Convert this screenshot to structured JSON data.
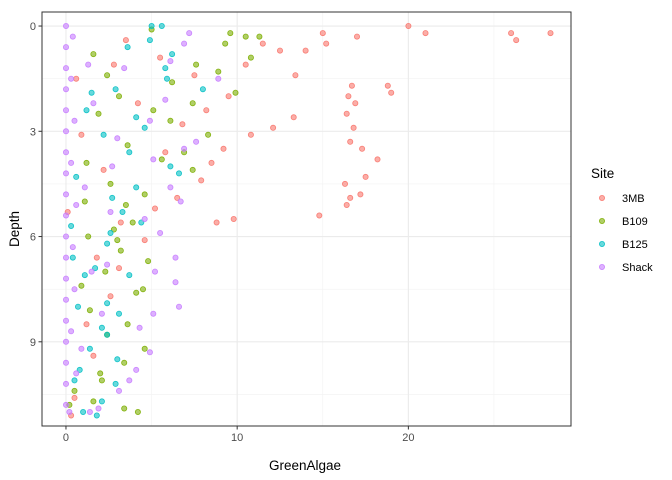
{
  "chart_data": {
    "type": "scatter",
    "title": "",
    "xlabel": "GreenAlgae",
    "ylabel": "Depth",
    "xlim": [
      -1.4,
      29.5
    ],
    "ylim": [
      -0.4,
      11.4
    ],
    "y_reversed": true,
    "x_ticks": [
      0,
      10,
      20
    ],
    "y_ticks": [
      0,
      3,
      6,
      9
    ],
    "grid": true,
    "legend": {
      "title": "Site",
      "placement": "right"
    },
    "series": [
      {
        "name": "3MB",
        "color": "#F8766D",
        "points": [
          [
            20,
            0
          ],
          [
            21,
            0.2
          ],
          [
            26,
            0.2
          ],
          [
            26.3,
            0.4
          ],
          [
            28.3,
            0.2
          ],
          [
            15,
            0.2
          ],
          [
            17,
            0.3
          ],
          [
            15.2,
            0.5
          ],
          [
            14,
            0.7
          ],
          [
            12.5,
            0.7
          ],
          [
            13.4,
            1.4
          ],
          [
            16.7,
            1.7
          ],
          [
            18.8,
            1.7
          ],
          [
            19,
            1.9
          ],
          [
            16.5,
            2.0
          ],
          [
            16.9,
            2.2
          ],
          [
            16.4,
            2.5
          ],
          [
            16.8,
            2.9
          ],
          [
            16.6,
            3.3
          ],
          [
            17.3,
            3.5
          ],
          [
            18.2,
            3.8
          ],
          [
            17.5,
            4.3
          ],
          [
            16.3,
            4.5
          ],
          [
            16.6,
            4.9
          ],
          [
            16.4,
            5.1
          ],
          [
            14.8,
            5.4
          ],
          [
            9.8,
            5.5
          ],
          [
            8.8,
            5.6
          ],
          [
            11.5,
            0.5
          ],
          [
            10.5,
            1.1
          ],
          [
            9.5,
            2.0
          ],
          [
            8.2,
            2.4
          ],
          [
            12.1,
            2.9
          ],
          [
            9.2,
            3.5
          ],
          [
            7.9,
            4.4
          ],
          [
            6.5,
            4.9
          ],
          [
            5.2,
            5.2
          ],
          [
            3.5,
            0.4
          ],
          [
            2.8,
            1.1
          ],
          [
            4.2,
            2.2
          ],
          [
            5.8,
            3.6
          ],
          [
            2.2,
            4.1
          ],
          [
            3.2,
            5.6
          ],
          [
            1.8,
            6.6
          ],
          [
            2.6,
            7.7
          ],
          [
            1.2,
            8.5
          ],
          [
            0.6,
            1.5
          ],
          [
            0.9,
            3.1
          ],
          [
            1.6,
            9.4
          ],
          [
            0.5,
            10.6
          ],
          [
            0.3,
            11.1
          ],
          [
            13.3,
            2.6
          ],
          [
            17.2,
            4.8
          ],
          [
            7.5,
            1.4
          ],
          [
            6.8,
            2.8
          ],
          [
            10.8,
            3.1
          ],
          [
            4.6,
            6.1
          ],
          [
            3.1,
            6.9
          ],
          [
            8.5,
            3.9
          ],
          [
            5.5,
            0.9
          ],
          [
            0.1,
            5.3
          ]
        ]
      },
      {
        "name": "B109",
        "color": "#7CAE00",
        "points": [
          [
            5,
            0.1
          ],
          [
            9.6,
            0.2
          ],
          [
            11.3,
            0.3
          ],
          [
            10.5,
            0.3
          ],
          [
            9.3,
            0.5
          ],
          [
            7.6,
            1.1
          ],
          [
            9.9,
            1.9
          ],
          [
            7.4,
            2.2
          ],
          [
            6.1,
            2.7
          ],
          [
            8.3,
            3.1
          ],
          [
            5.6,
            3.8
          ],
          [
            7.4,
            4.1
          ],
          [
            4.6,
            4.8
          ],
          [
            3.5,
            5.1
          ],
          [
            3.9,
            5.6
          ],
          [
            3.0,
            6.1
          ],
          [
            3.2,
            6.4
          ],
          [
            2.3,
            7.0
          ],
          [
            4.5,
            7.5
          ],
          [
            4.1,
            7.6
          ],
          [
            3.6,
            8.5
          ],
          [
            2.4,
            8.8
          ],
          [
            4.6,
            9.2
          ],
          [
            3.4,
            9.6
          ],
          [
            2.1,
            10.1
          ],
          [
            1.6,
            10.7
          ],
          [
            3.4,
            10.9
          ],
          [
            4.2,
            11.0
          ],
          [
            0.5,
            10.4
          ],
          [
            0.2,
            10.8
          ],
          [
            1.6,
            0.8
          ],
          [
            2.4,
            1.4
          ],
          [
            3.1,
            2.0
          ],
          [
            1.9,
            2.5
          ],
          [
            3.6,
            3.4
          ],
          [
            2.6,
            4.5
          ],
          [
            1.1,
            5.0
          ],
          [
            1.3,
            6.0
          ],
          [
            0.9,
            7.4
          ],
          [
            1.4,
            8.1
          ],
          [
            6.2,
            1.6
          ],
          [
            5.1,
            2.4
          ],
          [
            6.9,
            3.6
          ],
          [
            4.8,
            6.7
          ],
          [
            2.8,
            5.8
          ],
          [
            2.0,
            9.9
          ],
          [
            1.2,
            3.9
          ],
          [
            10.8,
            0.9
          ],
          [
            8.9,
            1.3
          ]
        ]
      },
      {
        "name": "B125",
        "color": "#00BFC4",
        "points": [
          [
            5,
            0
          ],
          [
            5.6,
            0
          ],
          [
            4.9,
            0.4
          ],
          [
            3.6,
            0.6
          ],
          [
            5.9,
            1.5
          ],
          [
            2.9,
            1.8
          ],
          [
            4.1,
            2.6
          ],
          [
            3.7,
            3.6
          ],
          [
            6.1,
            4.0
          ],
          [
            4.1,
            4.6
          ],
          [
            3.3,
            5.3
          ],
          [
            2.6,
            5.9
          ],
          [
            2.4,
            6.2
          ],
          [
            0.4,
            6.6
          ],
          [
            1.1,
            7.1
          ],
          [
            2.4,
            7.9
          ],
          [
            3.1,
            8.2
          ],
          [
            2.1,
            8.6
          ],
          [
            2.4,
            8.8
          ],
          [
            1.4,
            9.2
          ],
          [
            0.8,
            9.8
          ],
          [
            2.9,
            10.2
          ],
          [
            2.1,
            10.7
          ],
          [
            1.0,
            11.0
          ],
          [
            1.8,
            11.1
          ],
          [
            4.6,
            2.9
          ],
          [
            6.6,
            4.2
          ],
          [
            2.7,
            4.9
          ],
          [
            5.8,
            1.2
          ],
          [
            1.5,
            1.9
          ],
          [
            2.2,
            3.1
          ],
          [
            0.6,
            4.3
          ],
          [
            0.3,
            5.7
          ],
          [
            1.7,
            6.9
          ],
          [
            0.7,
            8.0
          ],
          [
            3.7,
            7.1
          ],
          [
            6.2,
            0.8
          ],
          [
            8.0,
            1.8
          ],
          [
            4.4,
            5.6
          ],
          [
            3.0,
            9.5
          ],
          [
            1.2,
            2.4
          ],
          [
            0.5,
            10.1
          ]
        ]
      },
      {
        "name": "Shack",
        "color": "#C77CFF",
        "points": [
          [
            0,
            0
          ],
          [
            0,
            0.6
          ],
          [
            0,
            1.2
          ],
          [
            0,
            1.8
          ],
          [
            0,
            2.4
          ],
          [
            0,
            3.0
          ],
          [
            0,
            3.6
          ],
          [
            0,
            4.2
          ],
          [
            0,
            4.8
          ],
          [
            0,
            5.4
          ],
          [
            0,
            6.0
          ],
          [
            0,
            6.6
          ],
          [
            0,
            7.2
          ],
          [
            0,
            7.8
          ],
          [
            0,
            8.4
          ],
          [
            0,
            9.0
          ],
          [
            0,
            9.6
          ],
          [
            0,
            10.2
          ],
          [
            0,
            10.8
          ],
          [
            0.2,
            11.0
          ],
          [
            0.4,
            0.3
          ],
          [
            0.3,
            1.5
          ],
          [
            0.5,
            2.7
          ],
          [
            0.3,
            3.9
          ],
          [
            0.6,
            5.1
          ],
          [
            0.4,
            6.3
          ],
          [
            0.5,
            7.5
          ],
          [
            0.3,
            8.7
          ],
          [
            0.6,
            9.9
          ],
          [
            7.2,
            0.2
          ],
          [
            6.9,
            0.5
          ],
          [
            6.1,
            1.0
          ],
          [
            8.9,
            1.5
          ],
          [
            5.8,
            2.1
          ],
          [
            4.9,
            2.7
          ],
          [
            7.6,
            3.3
          ],
          [
            6.9,
            3.5
          ],
          [
            5.1,
            3.8
          ],
          [
            6.1,
            4.6
          ],
          [
            6.7,
            5.0
          ],
          [
            4.6,
            5.5
          ],
          [
            5.5,
            5.9
          ],
          [
            6.4,
            6.6
          ],
          [
            5.2,
            7.0
          ],
          [
            6.4,
            7.3
          ],
          [
            6.6,
            8.0
          ],
          [
            5.1,
            8.2
          ],
          [
            4.3,
            8.6
          ],
          [
            4.9,
            9.3
          ],
          [
            4.1,
            9.8
          ],
          [
            3.1,
            10.4
          ],
          [
            1.9,
            10.9
          ],
          [
            1.4,
            11.0
          ],
          [
            2.4,
            6.8
          ],
          [
            2.7,
            4.0
          ],
          [
            1.6,
            2.2
          ],
          [
            3.4,
            1.2
          ],
          [
            1.1,
            4.6
          ],
          [
            2.1,
            8.2
          ],
          [
            3.7,
            10.1
          ],
          [
            1.5,
            7.0
          ],
          [
            0.9,
            9.2
          ],
          [
            2.6,
            5.3
          ],
          [
            1.3,
            1.1
          ],
          [
            3.0,
            3.2
          ]
        ]
      }
    ]
  }
}
